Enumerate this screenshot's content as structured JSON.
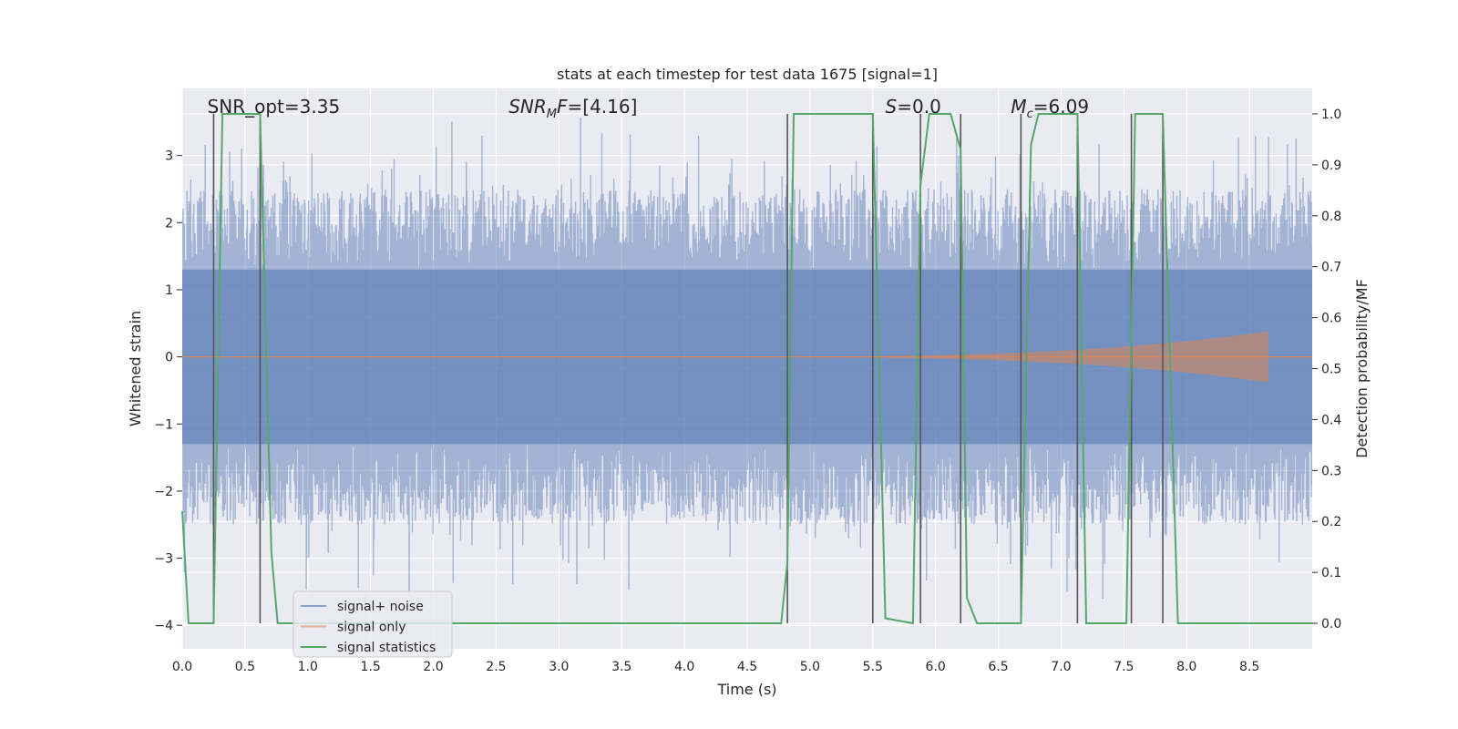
{
  "chart_data": {
    "type": "line",
    "title": "stats at each timestep for test data 1675 [signal=1]",
    "xlabel": "Time (s)",
    "ylabel": "Whitened strain",
    "y2label": "Detection probability/MF",
    "xlim": [
      0.0,
      9.0
    ],
    "ylim": [
      -4.35,
      4.0
    ],
    "y2lim": [
      -0.05,
      1.05
    ],
    "xticks": [
      0.0,
      0.5,
      1.0,
      1.5,
      2.0,
      2.5,
      3.0,
      3.5,
      4.0,
      4.5,
      5.0,
      5.5,
      6.0,
      6.5,
      7.0,
      7.5,
      8.0,
      8.5
    ],
    "yticks": [
      -4,
      -3,
      -2,
      -1,
      0,
      1,
      2,
      3
    ],
    "y2ticks": [
      0.0,
      0.1,
      0.2,
      0.3,
      0.4,
      0.5,
      0.6,
      0.7,
      0.8,
      0.9,
      1.0
    ],
    "grid": true,
    "legend_position": "lower-left",
    "annotations": [
      {
        "text": "SNR_opt=3.35",
        "x": 0.2
      },
      {
        "text": "SNR_MF=[4.16]",
        "x": 2.6
      },
      {
        "text": "S=0.0",
        "x": 5.6
      },
      {
        "text": "M_c=6.09",
        "x": 6.6
      }
    ],
    "series": [
      {
        "name": "signal+ noise",
        "color": "#4c72b0",
        "axis": "left",
        "noise_band": {
          "inner_abs": 1.3,
          "typical_peak": 2.5,
          "max_abs": 3.7,
          "n_samples": 1800
        }
      },
      {
        "name": "signal only",
        "color": "#dd8452",
        "axis": "left",
        "chirp_envelope": {
          "start": 4.0,
          "end": 8.65,
          "peak_amplitude": 0.38
        }
      },
      {
        "name": "signal statistics",
        "color": "#55a868",
        "axis": "right",
        "x": [
          0.0,
          0.05,
          0.25,
          0.32,
          0.62,
          0.71,
          0.76,
          4.77,
          4.82,
          4.87,
          5.5,
          5.6,
          5.82,
          5.88,
          5.95,
          6.12,
          6.2,
          6.25,
          6.33,
          6.68,
          6.76,
          6.82,
          7.13,
          7.2,
          7.52,
          7.59,
          7.81,
          7.93,
          9.0
        ],
        "y": [
          0.22,
          0.0,
          0.0,
          1.0,
          1.0,
          0.14,
          0.0,
          0.0,
          0.12,
          1.0,
          1.0,
          0.01,
          0.0,
          0.86,
          1.0,
          1.0,
          0.93,
          0.05,
          0.0,
          0.0,
          0.94,
          1.0,
          1.0,
          0.0,
          0.0,
          1.0,
          1.0,
          0.0,
          0.0
        ]
      }
    ],
    "vlines": {
      "color": "#555555",
      "x": [
        0.25,
        0.62,
        4.82,
        5.5,
        5.88,
        6.2,
        6.68,
        7.13,
        7.56,
        7.81
      ]
    }
  }
}
